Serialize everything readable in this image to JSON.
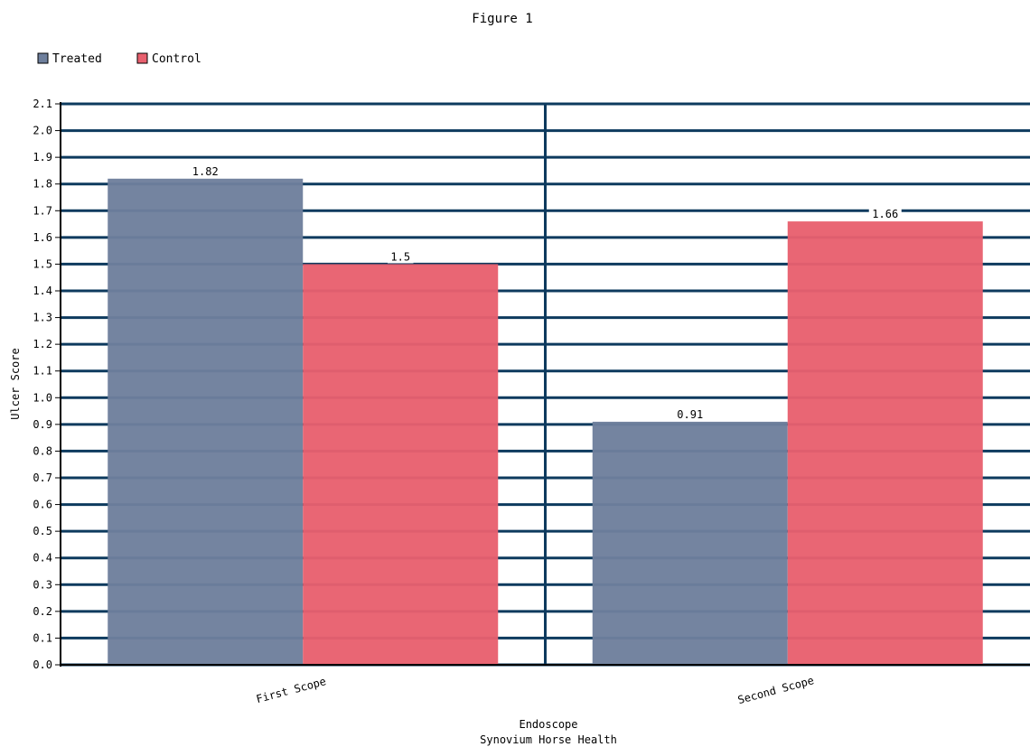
{
  "chart_data": {
    "type": "bar",
    "title": "Figure 1",
    "xlabel": "Endoscope",
    "subtitle": "Synovium Horse Health",
    "ylabel": "Ulcer Score",
    "ylim": [
      0,
      2.1
    ],
    "y_ticks": [
      "0.0",
      "0.1",
      "0.2",
      "0.3",
      "0.4",
      "0.5",
      "0.6",
      "0.7",
      "0.8",
      "0.9",
      "1.0",
      "1.1",
      "1.2",
      "1.3",
      "1.4",
      "1.5",
      "1.6",
      "1.7",
      "1.8",
      "1.9",
      "2.0",
      "2.1"
    ],
    "categories": [
      "First Scope",
      "Second Scope"
    ],
    "series": [
      {
        "name": "Treated",
        "values": [
          1.82,
          0.91
        ],
        "labels": [
          "1.82",
          "0.91"
        ],
        "color": "#6e7f9c"
      },
      {
        "name": "Control",
        "values": [
          1.5,
          1.66
        ],
        "labels": [
          "1.5",
          "1.66"
        ],
        "color": "#e8606e"
      }
    ],
    "grid": true,
    "legend_position": "top-left",
    "gridline_color": "#0d3a5e"
  }
}
